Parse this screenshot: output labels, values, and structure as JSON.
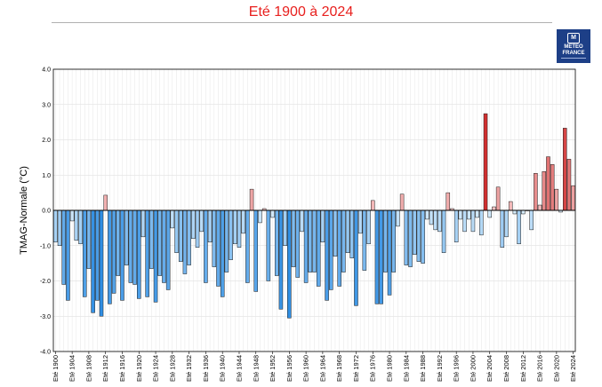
{
  "chart_data": {
    "type": "bar",
    "title": "Eté 1900 à 2024",
    "ylabel": "TMAG-Normale (°C)",
    "xlabel": "",
    "ylim": [
      -4.0,
      4.0
    ],
    "yticks": [
      "4.0",
      "3.0",
      "2.0",
      "1.0",
      "0.0",
      "-1.0",
      "-2.0",
      "-3.0",
      "-4.0"
    ],
    "years": [
      1900,
      1901,
      1902,
      1903,
      1904,
      1905,
      1906,
      1907,
      1908,
      1909,
      1910,
      1911,
      1912,
      1913,
      1914,
      1915,
      1916,
      1917,
      1918,
      1919,
      1920,
      1921,
      1922,
      1923,
      1924,
      1925,
      1926,
      1927,
      1928,
      1929,
      1930,
      1931,
      1932,
      1933,
      1934,
      1935,
      1936,
      1937,
      1938,
      1939,
      1940,
      1941,
      1942,
      1943,
      1944,
      1945,
      1946,
      1947,
      1948,
      1949,
      1950,
      1951,
      1952,
      1953,
      1954,
      1955,
      1956,
      1957,
      1958,
      1959,
      1960,
      1961,
      1962,
      1963,
      1964,
      1965,
      1966,
      1967,
      1968,
      1969,
      1970,
      1971,
      1972,
      1973,
      1974,
      1975,
      1976,
      1977,
      1978,
      1979,
      1980,
      1981,
      1982,
      1983,
      1984,
      1985,
      1986,
      1987,
      1988,
      1989,
      1990,
      1991,
      1992,
      1993,
      1994,
      1995,
      1996,
      1997,
      1998,
      1999,
      2000,
      2001,
      2002,
      2003,
      2004,
      2005,
      2006,
      2007,
      2008,
      2009,
      2010,
      2011,
      2012,
      2013,
      2014,
      2015,
      2016,
      2017,
      2018,
      2019,
      2020,
      2021,
      2022,
      2023,
      2024
    ],
    "values": [
      -0.9,
      -1.0,
      -2.1,
      -2.55,
      -0.3,
      -0.85,
      -0.95,
      -2.45,
      -1.65,
      -2.9,
      -2.55,
      -3.0,
      0.43,
      -2.65,
      -2.35,
      -1.85,
      -2.55,
      -1.55,
      -2.05,
      -2.1,
      -2.5,
      -0.75,
      -2.45,
      -1.65,
      -2.6,
      -1.85,
      -2.05,
      -2.25,
      -0.5,
      -1.2,
      -1.45,
      -1.8,
      -1.55,
      -0.8,
      -1.05,
      -0.6,
      -2.05,
      -0.9,
      -1.6,
      -2.15,
      -2.45,
      -1.75,
      -1.4,
      -0.95,
      -1.05,
      -0.65,
      -2.05,
      0.6,
      -2.3,
      -0.35,
      0.05,
      -2.0,
      -0.2,
      -1.85,
      -2.8,
      -1.0,
      -3.05,
      -1.6,
      -1.9,
      -0.6,
      -2.05,
      -1.75,
      -1.75,
      -2.15,
      -0.9,
      -2.55,
      -2.25,
      -1.3,
      -2.15,
      -1.75,
      -1.2,
      -1.35,
      -2.7,
      -0.65,
      -1.7,
      -0.95,
      0.28,
      -2.65,
      -2.65,
      -1.75,
      -2.4,
      -1.75,
      -0.45,
      0.46,
      -1.55,
      -1.6,
      -1.25,
      -1.45,
      -1.5,
      -0.25,
      -0.4,
      -0.55,
      -0.6,
      -1.2,
      0.5,
      0.05,
      -0.9,
      -0.25,
      -0.6,
      -0.25,
      -0.6,
      -0.2,
      -0.7,
      2.74,
      -0.2,
      0.1,
      0.66,
      -1.05,
      -0.75,
      0.25,
      -0.1,
      -0.95,
      -0.1,
      0.0,
      -0.55,
      1.05,
      0.15,
      1.1,
      1.52,
      1.3,
      0.6,
      -0.05,
      2.33,
      1.45,
      0.7
    ],
    "xtick_labels": [
      "Eté 1900",
      "Eté 1904",
      "Eté 1908",
      "Eté 1912",
      "Eté 1916",
      "Eté 1920",
      "Eté 1924",
      "Eté 1928",
      "Eté 1932",
      "Eté 1936",
      "Eté 1940",
      "Eté 1944",
      "Eté 1948",
      "Eté 1952",
      "Eté 1956",
      "Eté 1960",
      "Eté 1964",
      "Eté 1968",
      "Eté 1972",
      "Eté 1976",
      "Eté 1980",
      "Eté 1984",
      "Eté 1988",
      "Eté 1992",
      "Eté 1996",
      "Eté 2000",
      "Eté 2004",
      "Eté 2008",
      "Eté 2012",
      "Eté 2016",
      "Eté 2020",
      "Eté 2024"
    ],
    "colors": {
      "neg_light": "#dbeefb",
      "neg_dark": "#2f8ee3",
      "pos_light": "#f6c7c7",
      "pos_dark": "#cc1f1f",
      "title": "#e8201e"
    }
  },
  "logo": {
    "mark": "M",
    "line1": "METEO",
    "line2": "FRANCE"
  }
}
